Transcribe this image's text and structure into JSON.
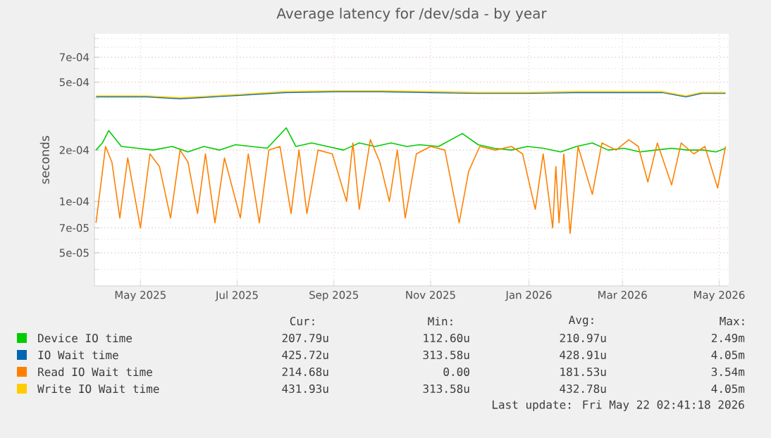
{
  "chart_data": {
    "type": "line",
    "title": "Average latency for /dev/sda - by year",
    "ylabel": "seconds",
    "log": "y",
    "grid": true,
    "legend": "bottom",
    "marker": "none",
    "line_style": "solid",
    "xlim": [
      "2025-04-17",
      "2026-05-22"
    ],
    "xticks": [
      {
        "value": "2025-05-16",
        "label": "May 2025"
      },
      {
        "value": "2025-07-16",
        "label": "Jul 2025"
      },
      {
        "value": "2025-09-15",
        "label": "Sep 2025"
      },
      {
        "value": "2025-11-15",
        "label": "Nov 2025"
      },
      {
        "value": "2026-01-16",
        "label": "Jan 2026"
      },
      {
        "value": "2026-03-16",
        "label": "Mar 2026"
      },
      {
        "value": "2026-05-16",
        "label": "May 2026"
      }
    ],
    "ylim": [
      3.2e-05,
      0.00096
    ],
    "yticks": [
      {
        "value": 5e-05,
        "label": "5e-05"
      },
      {
        "value": 7e-05,
        "label": "7e-05"
      },
      {
        "value": 0.0001,
        "label": "1e-04"
      },
      {
        "value": 0.0002,
        "label": "2e-04"
      },
      {
        "value": 0.0005,
        "label": "5e-04"
      },
      {
        "value": 0.0007,
        "label": "7e-04"
      }
    ],
    "series": [
      {
        "name": "Device IO time",
        "color": "#00cc00",
        "x": [
          "2025-04-18",
          "2025-04-22",
          "2025-04-26",
          "2025-05-04",
          "2025-05-14",
          "2025-05-24",
          "2025-06-05",
          "2025-06-15",
          "2025-06-25",
          "2025-07-05",
          "2025-07-15",
          "2025-07-25",
          "2025-08-04",
          "2025-08-16",
          "2025-08-22",
          "2025-09-01",
          "2025-09-11",
          "2025-09-21",
          "2025-10-01",
          "2025-10-11",
          "2025-10-21",
          "2025-10-31",
          "2025-11-08",
          "2025-11-20",
          "2025-12-05",
          "2025-12-15",
          "2025-12-25",
          "2026-01-05",
          "2026-01-15",
          "2026-01-25",
          "2026-02-05",
          "2026-02-15",
          "2026-02-25",
          "2026-03-07",
          "2026-03-17",
          "2026-03-27",
          "2026-04-06",
          "2026-04-16",
          "2026-04-26",
          "2026-05-06",
          "2026-05-14",
          "2026-05-20"
        ],
        "values": [
          0.0002,
          0.00022,
          0.00026,
          0.00021,
          0.000205,
          0.0002,
          0.00021,
          0.000195,
          0.00021,
          0.0002,
          0.000215,
          0.00021,
          0.000205,
          0.00027,
          0.00021,
          0.00022,
          0.00021,
          0.0002,
          0.00022,
          0.00021,
          0.00022,
          0.00021,
          0.000215,
          0.00021,
          0.00025,
          0.000215,
          0.000205,
          0.0002,
          0.00021,
          0.000205,
          0.000195,
          0.00021,
          0.00022,
          0.0002,
          0.000205,
          0.000195,
          0.0002,
          0.000205,
          0.0002,
          0.0002,
          0.000195,
          0.000205
        ]
      },
      {
        "name": "IO Wait time",
        "color": "#0066b3",
        "x": [
          "2025-04-18",
          "2025-05-20",
          "2025-06-10",
          "2025-07-01",
          "2025-07-20",
          "2025-08-15",
          "2025-09-15",
          "2025-10-15",
          "2025-11-15",
          "2025-12-15",
          "2026-01-15",
          "2026-02-15",
          "2026-03-15",
          "2026-04-10",
          "2026-04-25",
          "2026-05-05",
          "2026-05-20"
        ],
        "values": [
          0.00041,
          0.00041,
          0.0004,
          0.00041,
          0.00042,
          0.000435,
          0.00044,
          0.00044,
          0.000435,
          0.00043,
          0.00043,
          0.000435,
          0.000435,
          0.000435,
          0.00041,
          0.00043,
          0.00043
        ]
      },
      {
        "name": "Read IO Wait time",
        "color": "#ff8000",
        "x": [
          "2025-04-18",
          "2025-04-24",
          "2025-04-28",
          "2025-05-03",
          "2025-05-08",
          "2025-05-16",
          "2025-05-22",
          "2025-05-28",
          "2025-06-04",
          "2025-06-10",
          "2025-06-15",
          "2025-06-21",
          "2025-06-26",
          "2025-07-02",
          "2025-07-08",
          "2025-07-18",
          "2025-07-23",
          "2025-07-30",
          "2025-08-05",
          "2025-08-12",
          "2025-08-19",
          "2025-08-24",
          "2025-08-29",
          "2025-09-05",
          "2025-09-14",
          "2025-09-23",
          "2025-09-27",
          "2025-10-01",
          "2025-10-08",
          "2025-10-14",
          "2025-10-20",
          "2025-10-25",
          "2025-10-30",
          "2025-11-06",
          "2025-11-15",
          "2025-11-24",
          "2025-12-03",
          "2025-12-09",
          "2025-12-16",
          "2025-12-26",
          "2026-01-05",
          "2026-01-12",
          "2026-01-20",
          "2026-01-25",
          "2026-01-31",
          "2026-02-02",
          "2026-02-04",
          "2026-02-07",
          "2026-02-11",
          "2026-02-16",
          "2026-02-25",
          "2026-03-03",
          "2026-03-12",
          "2026-03-20",
          "2026-03-26",
          "2026-04-01",
          "2026-04-07",
          "2026-04-16",
          "2026-04-22",
          "2026-04-30",
          "2026-05-07",
          "2026-05-15",
          "2026-05-20"
        ],
        "values": [
          7.5e-05,
          0.00021,
          0.00017,
          8e-05,
          0.00018,
          7e-05,
          0.00019,
          0.00016,
          8e-05,
          0.0002,
          0.00017,
          8.5e-05,
          0.00019,
          7.5e-05,
          0.00018,
          8e-05,
          0.00019,
          7.5e-05,
          0.0002,
          0.00021,
          8.5e-05,
          0.0002,
          8.5e-05,
          0.0002,
          0.00019,
          0.0001,
          0.00022,
          9e-05,
          0.00023,
          0.00017,
          0.0001,
          0.0002,
          8e-05,
          0.00019,
          0.00021,
          0.0002,
          7.5e-05,
          0.00015,
          0.00021,
          0.0002,
          0.00021,
          0.00019,
          9e-05,
          0.00019,
          7e-05,
          0.00016,
          7.5e-05,
          0.00019,
          6.5e-05,
          0.00021,
          0.00011,
          0.00022,
          0.0002,
          0.00023,
          0.00021,
          0.00013,
          0.00022,
          0.000125,
          0.00022,
          0.00019,
          0.00021,
          0.00012,
          0.00021
        ]
      },
      {
        "name": "Write IO Wait time",
        "color": "#ffcc00",
        "x": [
          "2025-04-18",
          "2025-05-20",
          "2025-06-10",
          "2025-07-01",
          "2025-07-20",
          "2025-08-15",
          "2025-09-15",
          "2025-10-15",
          "2025-11-15",
          "2025-12-15",
          "2026-01-15",
          "2026-02-15",
          "2026-03-15",
          "2026-04-10",
          "2026-04-25",
          "2026-05-05",
          "2026-05-20"
        ],
        "values": [
          0.000415,
          0.000415,
          0.000405,
          0.000415,
          0.000425,
          0.00044,
          0.000445,
          0.000445,
          0.00044,
          0.000435,
          0.000435,
          0.00044,
          0.00044,
          0.00044,
          0.000415,
          0.000435,
          0.000435
        ]
      }
    ],
    "annotations": [
      "Cur:",
      "Min:",
      "Avg:",
      "Max:",
      "207.79u",
      "112.60u",
      "210.97u",
      "2.49m",
      "425.72u",
      "313.58u",
      "428.91u",
      "4.05m",
      "214.68u",
      "0.00",
      "181.53u",
      "3.54m",
      "431.93u",
      "313.58u",
      "432.78u",
      "4.05m",
      "Last update: Fri May 22 02:41:18 2026"
    ]
  }
}
